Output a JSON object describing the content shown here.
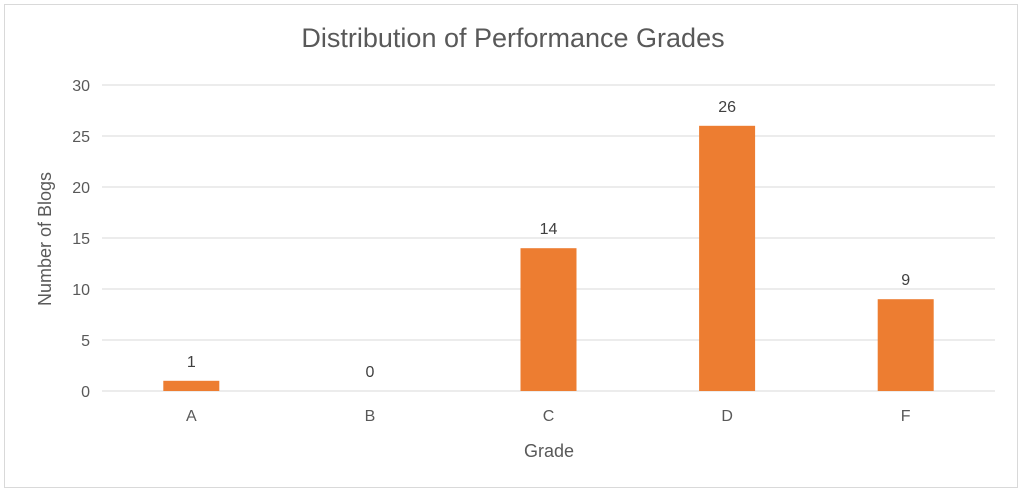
{
  "chart_data": {
    "type": "bar",
    "title": "Distribution of Performance Grades",
    "xlabel": "Grade",
    "ylabel": "Number of Blogs",
    "categories": [
      "A",
      "B",
      "C",
      "D",
      "F"
    ],
    "values": [
      1,
      0,
      14,
      26,
      9
    ],
    "data_labels": [
      "1",
      "0",
      "14",
      "26",
      "9"
    ],
    "ylim": [
      0,
      30
    ],
    "y_ticks": [
      0,
      5,
      10,
      15,
      20,
      25,
      30
    ],
    "y_tick_labels": [
      "0",
      "5",
      "10",
      "15",
      "20",
      "25",
      "30"
    ],
    "grid": true,
    "legend": "none",
    "bar_color": "#ED7D31",
    "grid_color": "#D9D9D9",
    "text_color": "#595959",
    "label_color": "#404040"
  }
}
